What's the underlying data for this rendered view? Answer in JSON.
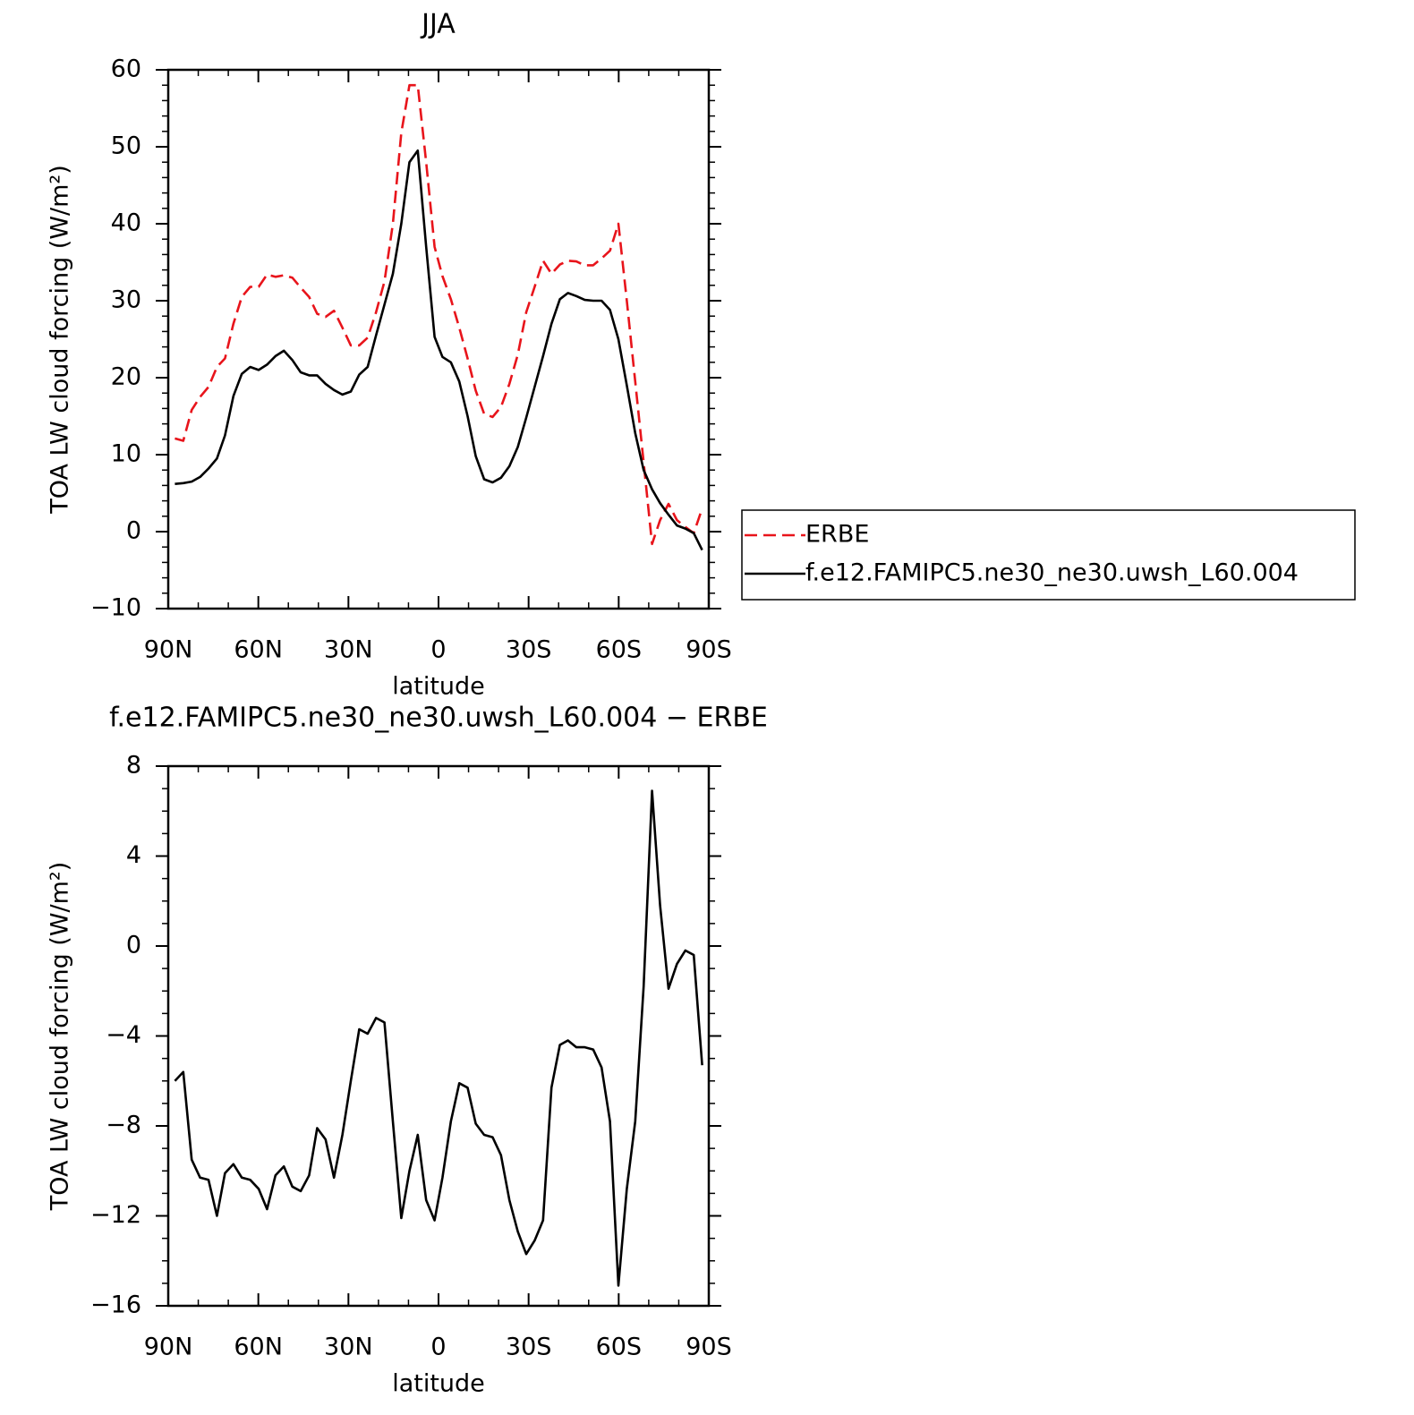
{
  "chart_data": [
    {
      "type": "line",
      "title": "JJA",
      "xlabel": "latitude",
      "ylabel": "TOA LW cloud forcing (W/m²)",
      "x": [
        87.8,
        85.0,
        82.2,
        79.4,
        76.6,
        73.8,
        71.1,
        68.3,
        65.5,
        62.7,
        59.9,
        57.1,
        54.3,
        51.5,
        48.7,
        45.9,
        43.1,
        40.4,
        37.6,
        34.8,
        32.0,
        29.2,
        26.4,
        23.6,
        20.8,
        18.0,
        15.2,
        12.4,
        9.7,
        6.9,
        4.1,
        1.3,
        -1.3,
        -4.1,
        -6.9,
        -9.7,
        -12.4,
        -15.2,
        -18.0,
        -20.8,
        -23.6,
        -26.4,
        -29.2,
        -32.0,
        -34.8,
        -37.6,
        -40.4,
        -43.1,
        -45.9,
        -48.7,
        -51.5,
        -54.3,
        -57.1,
        -59.9,
        -62.7,
        -65.5,
        -68.3,
        -71.1,
        -73.8,
        -76.6,
        -79.4,
        -82.2,
        -85.0,
        -87.8
      ],
      "series": [
        {
          "name": "ERBE",
          "color": "#e8141b",
          "line_style": "dashed",
          "values": [
            12.1,
            11.8,
            15.8,
            17.5,
            18.8,
            21.4,
            22.5,
            27,
            30.5,
            31.8,
            31.8,
            33.4,
            33.1,
            33.3,
            33.0,
            31.7,
            30.5,
            28.3,
            27.9,
            28.7,
            26.5,
            24.2,
            24.2,
            25.2,
            28.5,
            32.5,
            40,
            51.8,
            58,
            58,
            48,
            37,
            33.2,
            30.2,
            26.5,
            22.5,
            18.3,
            15.3,
            14.9,
            16.2,
            19.2,
            23,
            28.5,
            31.8,
            35.2,
            33.5,
            34.7,
            35.2,
            35.1,
            34.6,
            34.6,
            35.5,
            36.5,
            40,
            30,
            19.5,
            9,
            -1.6,
            1.5,
            3.6,
            1.5,
            0.6,
            -0.2,
            3.0
          ]
        },
        {
          "name": "f.e12.FAMIPC5.ne30_ne30.uwsh_L60.004",
          "color": "#000000",
          "line_style": "solid",
          "values": [
            6.2,
            6.3,
            6.5,
            7.1,
            8.2,
            9.5,
            12.5,
            17.6,
            20.5,
            21.4,
            21.0,
            21.7,
            22.8,
            23.5,
            22.3,
            20.7,
            20.3,
            20.3,
            19.2,
            18.4,
            17.8,
            18.2,
            20.4,
            21.4,
            25.5,
            29.5,
            33.5,
            40,
            48,
            49.5,
            37,
            25.3,
            22.7,
            22.0,
            19.5,
            15,
            9.8,
            6.8,
            6.4,
            7.0,
            8.5,
            11,
            14.8,
            18.8,
            22.8,
            27,
            30.2,
            31.0,
            30.6,
            30.1,
            30.0,
            30.0,
            28.8,
            25,
            19,
            12.8,
            8,
            5.5,
            3.7,
            2.2,
            0.8,
            0.4,
            -0.2,
            -2.4
          ]
        }
      ],
      "xlim": [
        90,
        -90
      ],
      "xticks": [
        {
          "value": 90,
          "label": "90N"
        },
        {
          "value": 60,
          "label": "60N"
        },
        {
          "value": 30,
          "label": "30N"
        },
        0,
        {
          "value": -30,
          "label": "30S"
        },
        {
          "value": -60,
          "label": "60S"
        },
        {
          "value": -90,
          "label": "90S"
        }
      ],
      "xminorticks": [
        80,
        70,
        50,
        40,
        20,
        10,
        -10,
        -20,
        -40,
        -50,
        -70,
        -80
      ],
      "ylim": [
        -10,
        60
      ],
      "yticks": [
        {
          "value": -10,
          "label": "−10"
        },
        0,
        10,
        20,
        30,
        40,
        50,
        60
      ],
      "yminorticks": [
        -8,
        -6,
        -4,
        -2,
        2,
        4,
        6,
        8,
        12,
        14,
        16,
        18,
        22,
        24,
        26,
        28,
        32,
        34,
        36,
        38,
        42,
        44,
        46,
        48,
        52,
        54,
        56,
        58
      ],
      "legend": "right"
    },
    {
      "type": "line",
      "title": "f.e12.FAMIPC5.ne30_ne30.uwsh_L60.004 − ERBE",
      "xlabel": "latitude",
      "ylabel": "TOA LW cloud forcing (W/m²)",
      "x": [
        87.8,
        85.0,
        82.2,
        79.4,
        76.6,
        73.8,
        71.1,
        68.3,
        65.5,
        62.7,
        59.9,
        57.1,
        54.3,
        51.5,
        48.7,
        45.9,
        43.1,
        40.4,
        37.6,
        34.8,
        32.0,
        29.2,
        26.4,
        23.6,
        20.8,
        18.0,
        15.2,
        12.4,
        9.7,
        6.9,
        4.1,
        1.3,
        -1.3,
        -4.1,
        -6.9,
        -9.7,
        -12.4,
        -15.2,
        -18.0,
        -20.8,
        -23.6,
        -26.4,
        -29.2,
        -32.0,
        -34.8,
        -37.6,
        -40.4,
        -43.1,
        -45.9,
        -48.7,
        -51.5,
        -54.3,
        -57.1,
        -59.9,
        -62.7,
        -65.5,
        -68.3,
        -71.1,
        -73.8,
        -76.6,
        -79.4,
        -82.2,
        -85.0,
        -87.8
      ],
      "series": [
        {
          "color": "#000000",
          "line_style": "solid",
          "values": [
            -6.0,
            -5.6,
            -9.5,
            -10.3,
            -10.4,
            -12,
            -10.1,
            -9.7,
            -10.3,
            -10.4,
            -10.8,
            -11.7,
            -10.2,
            -9.8,
            -10.7,
            -10.9,
            -10.2,
            -8.1,
            -8.6,
            -10.3,
            -8.4,
            -6,
            -3.7,
            -3.9,
            -3.2,
            -3.4,
            -7.8,
            -12.1,
            -10,
            -8.4,
            -11.3,
            -12.2,
            -10.3,
            -7.8,
            -6.1,
            -6.3,
            -7.9,
            -8.4,
            -8.5,
            -9.3,
            -11.3,
            -12.7,
            -13.7,
            -13.1,
            -12.2,
            -6.3,
            -4.4,
            -4.2,
            -4.5,
            -4.5,
            -4.6,
            -5.4,
            -7.8,
            -15.1,
            -10.8,
            -7.8,
            -1.8,
            6.9,
            1.8,
            -1.9,
            -0.8,
            -0.2,
            -0.4,
            -5.3
          ]
        }
      ],
      "xlim": [
        90,
        -90
      ],
      "xticks": [
        {
          "value": 90,
          "label": "90N"
        },
        {
          "value": 60,
          "label": "60N"
        },
        {
          "value": 30,
          "label": "30N"
        },
        0,
        {
          "value": -30,
          "label": "30S"
        },
        {
          "value": -60,
          "label": "60S"
        },
        {
          "value": -90,
          "label": "90S"
        }
      ],
      "xminorticks": [
        80,
        70,
        50,
        40,
        20,
        10,
        -10,
        -20,
        -40,
        -50,
        -70,
        -80
      ],
      "ylim": [
        -16,
        8
      ],
      "yticks": [
        {
          "value": -16,
          "label": "−16"
        },
        {
          "value": -12,
          "label": "−12"
        },
        {
          "value": -8,
          "label": "−8"
        },
        {
          "value": -4,
          "label": "−4"
        },
        0,
        4,
        8
      ],
      "yminorticks": [
        -15,
        -14,
        -13,
        -11,
        -10,
        -9,
        -7,
        -6,
        -5,
        -3,
        -2,
        -1,
        1,
        2,
        3,
        5,
        6,
        7
      ]
    }
  ]
}
